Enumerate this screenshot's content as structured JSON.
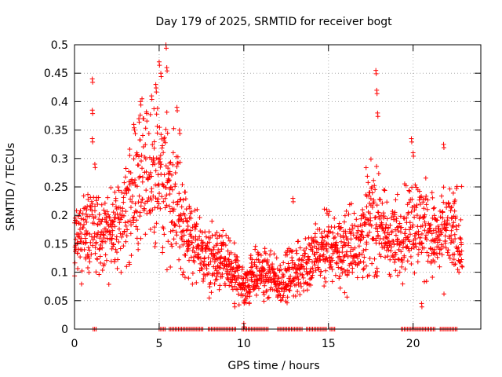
{
  "chart_data": {
    "type": "scatter",
    "title": "Day 179 of 2025, SRMTID for receiver bogt",
    "xlabel": "GPS time / hours",
    "ylabel": "SRMTID / TECUs",
    "xlim": [
      0,
      24
    ],
    "ylim": [
      0,
      0.5
    ],
    "x_ticks": [
      0,
      5,
      10,
      15,
      20
    ],
    "y_ticks": [
      0,
      0.05,
      0.1,
      0.15,
      0.2,
      0.25,
      0.3,
      0.35,
      0.4,
      0.45,
      0.5
    ],
    "x_tick_labels": [
      "0",
      "5",
      "10",
      "15",
      "20"
    ],
    "y_tick_labels": [
      "0",
      "0.05",
      "0.1",
      "0.15",
      "0.2",
      "0.25",
      "0.3",
      "0.35",
      "0.4",
      "0.45",
      "0.5"
    ],
    "grid": true,
    "marker": "+",
    "color": "#ff0000",
    "series": [
      {
        "name": "SRMTID",
        "trend": [
          [
            0.0,
            0.16
          ],
          [
            0.5,
            0.17
          ],
          [
            1.0,
            0.18
          ],
          [
            1.5,
            0.16
          ],
          [
            2.0,
            0.17
          ],
          [
            2.5,
            0.18
          ],
          [
            3.0,
            0.2
          ],
          [
            3.5,
            0.24
          ],
          [
            4.0,
            0.25
          ],
          [
            4.5,
            0.28
          ],
          [
            5.0,
            0.26
          ],
          [
            5.5,
            0.25
          ],
          [
            6.0,
            0.22
          ],
          [
            6.5,
            0.18
          ],
          [
            7.0,
            0.15
          ],
          [
            7.5,
            0.13
          ],
          [
            8.0,
            0.12
          ],
          [
            8.5,
            0.12
          ],
          [
            9.0,
            0.11
          ],
          [
            9.5,
            0.1
          ],
          [
            10.0,
            0.07
          ],
          [
            10.5,
            0.1
          ],
          [
            11.0,
            0.1
          ],
          [
            11.5,
            0.09
          ],
          [
            12.0,
            0.08
          ],
          [
            12.5,
            0.09
          ],
          [
            13.0,
            0.1
          ],
          [
            13.5,
            0.11
          ],
          [
            14.0,
            0.12
          ],
          [
            14.5,
            0.13
          ],
          [
            15.0,
            0.14
          ],
          [
            15.5,
            0.14
          ],
          [
            16.0,
            0.14
          ],
          [
            16.5,
            0.15
          ],
          [
            17.0,
            0.17
          ],
          [
            17.5,
            0.2
          ],
          [
            18.0,
            0.18
          ],
          [
            18.5,
            0.16
          ],
          [
            19.0,
            0.15
          ],
          [
            19.5,
            0.18
          ],
          [
            20.0,
            0.19
          ],
          [
            20.5,
            0.18
          ],
          [
            21.0,
            0.17
          ],
          [
            21.5,
            0.15
          ],
          [
            22.0,
            0.17
          ],
          [
            22.5,
            0.17
          ],
          [
            22.9,
            0.16
          ]
        ],
        "spikes": [
          [
            1.05,
            0.44
          ],
          [
            1.05,
            0.385
          ],
          [
            1.05,
            0.335
          ],
          [
            1.2,
            0.29
          ],
          [
            3.5,
            0.36
          ],
          [
            3.8,
            0.37
          ],
          [
            3.9,
            0.4
          ],
          [
            4.55,
            0.41
          ],
          [
            4.8,
            0.43
          ],
          [
            5.0,
            0.47
          ],
          [
            5.1,
            0.45
          ],
          [
            5.4,
            0.5
          ],
          [
            5.45,
            0.46
          ],
          [
            6.05,
            0.39
          ],
          [
            6.2,
            0.35
          ],
          [
            9.45,
            0.045
          ],
          [
            10.0,
            0.01
          ],
          [
            12.9,
            0.23
          ],
          [
            14.9,
            0.21
          ],
          [
            17.8,
            0.455
          ],
          [
            17.85,
            0.42
          ],
          [
            17.9,
            0.38
          ],
          [
            19.9,
            0.335
          ],
          [
            20.0,
            0.31
          ],
          [
            21.8,
            0.325
          ],
          [
            20.5,
            0.045
          ]
        ],
        "zero_segments": [
          [
            1.1,
            1.3
          ],
          [
            5.0,
            5.4
          ],
          [
            5.6,
            7.6
          ],
          [
            7.9,
            9.6
          ],
          [
            9.9,
            11.5
          ],
          [
            12.0,
            13.5
          ],
          [
            13.7,
            14.9
          ],
          [
            15.1,
            15.4
          ],
          [
            19.3,
            21.3
          ],
          [
            21.6,
            22.6
          ]
        ]
      }
    ]
  }
}
